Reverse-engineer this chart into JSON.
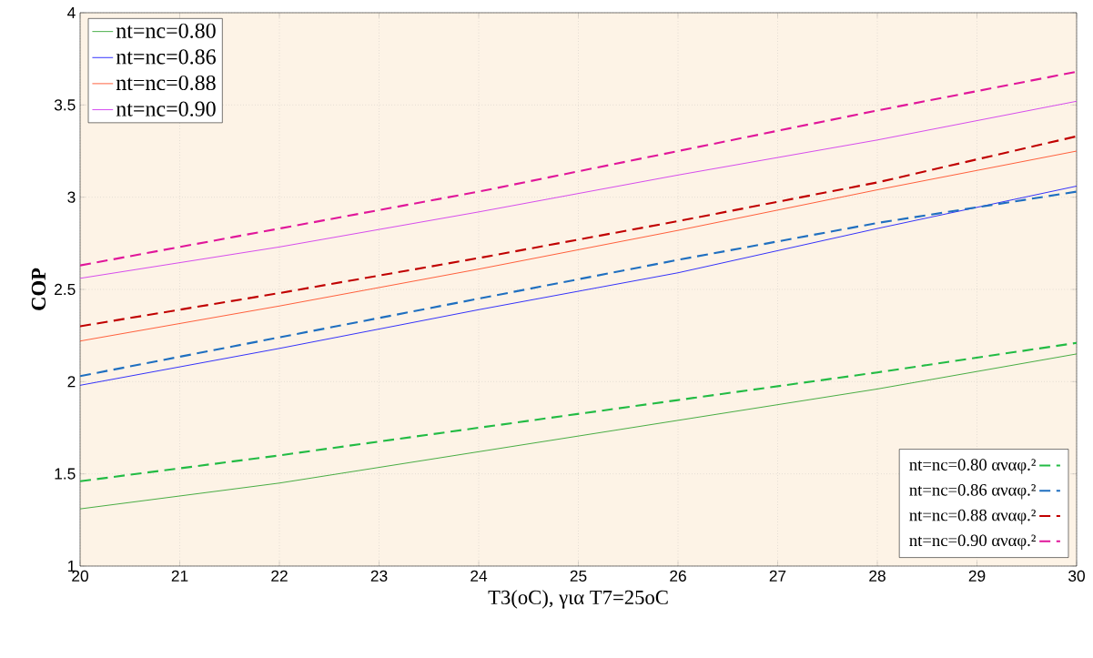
{
  "chart_data": {
    "type": "line",
    "xlabel": "T3(oC), για T7=25oC",
    "ylabel": "COP",
    "x": [
      20,
      22,
      24,
      26,
      28,
      30
    ],
    "series": [
      {
        "name": "nt=nc=0.80",
        "color": "#1a9a1a",
        "line_style": "solid",
        "values": [
          1.31,
          1.45,
          1.62,
          1.79,
          1.96,
          2.15
        ]
      },
      {
        "name": "nt=nc=0.86",
        "color": "#0000ff",
        "line_style": "solid",
        "values": [
          1.98,
          2.18,
          2.39,
          2.59,
          2.83,
          3.06
        ]
      },
      {
        "name": "nt=nc=0.88",
        "color": "#ff3a10",
        "line_style": "solid",
        "values": [
          2.22,
          2.41,
          2.61,
          2.82,
          3.04,
          3.25
        ]
      },
      {
        "name": "nt=nc=0.90",
        "color": "#cc22ee",
        "line_style": "solid",
        "values": [
          2.56,
          2.73,
          2.92,
          3.12,
          3.31,
          3.52
        ]
      },
      {
        "name": "nt=nc=0.80 αναφ.²",
        "color": "#22bb44",
        "line_style": "dashed",
        "values": [
          1.46,
          1.6,
          1.75,
          1.9,
          2.05,
          2.21
        ]
      },
      {
        "name": "nt=nc=0.86 αναφ.²",
        "color": "#1f6fc0",
        "line_style": "dashed",
        "values": [
          2.03,
          2.24,
          2.45,
          2.66,
          2.86,
          3.03
        ]
      },
      {
        "name": "nt=nc=0.88 αναφ.²",
        "color": "#c00000",
        "line_style": "dashed",
        "values": [
          2.3,
          2.48,
          2.67,
          2.87,
          3.08,
          3.33
        ]
      },
      {
        "name": "nt=nc=0.90 αναφ.²",
        "color": "#e0169a",
        "line_style": "dashed",
        "values": [
          2.63,
          2.83,
          3.03,
          3.25,
          3.47,
          3.68
        ]
      }
    ],
    "xlim": [
      20,
      30
    ],
    "xticks": [
      20,
      21,
      22,
      23,
      24,
      25,
      26,
      27,
      28,
      29,
      30
    ],
    "ylim": [
      1,
      4
    ],
    "yticks": [
      1,
      1.5,
      2,
      2.5,
      3,
      3.5,
      4
    ],
    "grid": true,
    "legend": "top left"
  }
}
